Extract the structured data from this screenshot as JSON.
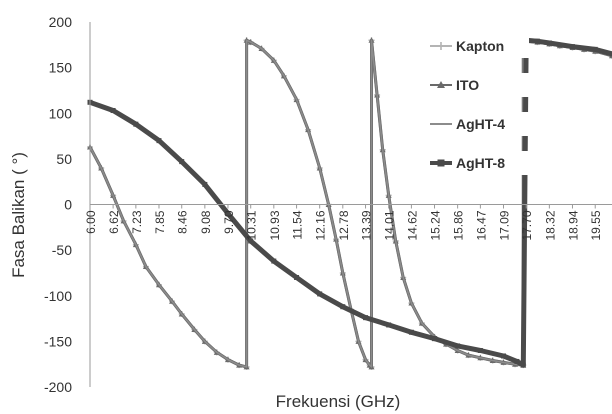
{
  "chart_data": {
    "type": "line",
    "title": "",
    "xlabel": "Frekuensi (GHz)",
    "ylabel": "Fasa Balikan ( °)",
    "ylim": [
      -200,
      200
    ],
    "xlim": [
      6.0,
      20.0
    ],
    "yticks": [
      200,
      150,
      100,
      50,
      0,
      -50,
      -100,
      -150,
      -200
    ],
    "yticklabels": [
      "200",
      "150",
      "100",
      "50",
      "0",
      "-50",
      "-100",
      "-150",
      "-200"
    ],
    "xticks": [
      6.0,
      6.62,
      7.23,
      7.85,
      8.46,
      9.08,
      9.7,
      10.31,
      10.93,
      11.54,
      12.16,
      12.78,
      13.39,
      14.01,
      14.62,
      15.24,
      15.86,
      16.47,
      17.09,
      17.7,
      18.32,
      18.94,
      19.55
    ],
    "xticklabels": [
      "6.00",
      "6.62",
      "7.23",
      "7.85",
      "8.46",
      "9.08",
      "9.70",
      "10.31",
      "10.93",
      "11.54",
      "12.16",
      "12.78",
      "13.39",
      "14.01",
      "14.62",
      "15.24",
      "15.86",
      "16.47",
      "17.09",
      "17.70",
      "18.32",
      "18.94",
      "19.55"
    ],
    "grid": false,
    "legend_position": "top-right",
    "series": [
      {
        "name": "Kapton",
        "color": "#b4b4b4",
        "marker": "plus",
        "x": [
          6.0,
          6.3,
          6.62,
          6.9,
          7.23,
          7.5,
          7.85,
          8.2,
          8.46,
          8.8,
          9.08,
          9.4,
          9.7,
          10.0,
          10.2,
          10.2,
          10.31,
          10.6,
          10.93,
          11.2,
          11.54,
          11.85,
          12.16,
          12.4,
          12.6,
          12.78,
          13.0,
          13.2,
          13.39,
          13.5,
          13.55,
          13.55,
          13.7,
          13.85,
          14.01,
          14.2,
          14.4,
          14.62,
          14.9,
          15.24,
          15.55,
          15.86,
          16.15,
          16.47,
          16.8,
          17.09,
          17.4,
          17.62,
          17.62,
          17.7,
          18.0,
          18.32,
          18.6,
          18.94,
          19.25,
          19.55,
          20.0
        ],
        "y": [
          63,
          40,
          10,
          -18,
          -44,
          -68,
          -88,
          -106,
          -120,
          -137,
          -150,
          -162,
          -170,
          -176,
          -178,
          180,
          178,
          171,
          158,
          141,
          115,
          82,
          40,
          0,
          -38,
          -75,
          -115,
          -150,
          -170,
          -176,
          -178,
          180,
          120,
          60,
          10,
          -40,
          -80,
          -108,
          -130,
          -145,
          -153,
          -160,
          -165,
          -168,
          -171,
          -173,
          -175,
          -176,
          180,
          179,
          178,
          176,
          174,
          172,
          170,
          168,
          163
        ]
      },
      {
        "name": "ITO",
        "color": "#6a6a6a",
        "marker": "triangle",
        "x": [
          6.0,
          6.3,
          6.62,
          6.9,
          7.23,
          7.5,
          7.85,
          8.2,
          8.46,
          8.8,
          9.08,
          9.4,
          9.7,
          10.0,
          10.2,
          10.2,
          10.31,
          10.6,
          10.93,
          11.2,
          11.54,
          11.85,
          12.16,
          12.4,
          12.6,
          12.78,
          13.0,
          13.2,
          13.39,
          13.5,
          13.55,
          13.55,
          13.7,
          13.85,
          14.01,
          14.2,
          14.4,
          14.62,
          14.9,
          15.24,
          15.55,
          15.86,
          16.15,
          16.47,
          16.8,
          17.09,
          17.4,
          17.62,
          17.62,
          17.7,
          18.0,
          18.32,
          18.6,
          18.94,
          19.25,
          19.55,
          20.0
        ],
        "y": [
          63,
          40,
          10,
          -18,
          -44,
          -68,
          -88,
          -106,
          -120,
          -137,
          -150,
          -162,
          -170,
          -176,
          -178,
          180,
          178,
          171,
          158,
          141,
          115,
          82,
          40,
          0,
          -38,
          -75,
          -115,
          -150,
          -170,
          -176,
          -178,
          180,
          120,
          60,
          10,
          -40,
          -80,
          -108,
          -130,
          -145,
          -153,
          -160,
          -165,
          -168,
          -171,
          -173,
          -175,
          -176,
          180,
          179,
          178,
          176,
          174,
          172,
          170,
          168,
          163
        ]
      },
      {
        "name": "AgHT-4",
        "color": "#8c8c8c",
        "marker": "none",
        "x": [
          6.0,
          6.3,
          6.62,
          6.9,
          7.23,
          7.5,
          7.85,
          8.2,
          8.46,
          8.8,
          9.08,
          9.4,
          9.7,
          10.0,
          10.2,
          10.2,
          10.31,
          10.6,
          10.93,
          11.2,
          11.54,
          11.85,
          12.16,
          12.4,
          12.6,
          12.78,
          13.0,
          13.2,
          13.39,
          13.5,
          13.55,
          13.55,
          13.7,
          13.85,
          14.01,
          14.2,
          14.4,
          14.62,
          14.9,
          15.24,
          15.55,
          15.86,
          16.15,
          16.47,
          16.8,
          17.09,
          17.4,
          17.62,
          17.62,
          17.7,
          18.0,
          18.32,
          18.6,
          18.94,
          19.25,
          19.55,
          20.0
        ],
        "y": [
          63,
          40,
          10,
          -18,
          -44,
          -68,
          -88,
          -106,
          -120,
          -137,
          -150,
          -162,
          -170,
          -176,
          -178,
          180,
          178,
          171,
          158,
          141,
          115,
          82,
          40,
          0,
          -38,
          -75,
          -115,
          -150,
          -170,
          -176,
          -178,
          180,
          120,
          60,
          10,
          -40,
          -80,
          -108,
          -130,
          -145,
          -153,
          -160,
          -165,
          -168,
          -171,
          -173,
          -175,
          -176,
          180,
          179,
          178,
          176,
          174,
          172,
          170,
          168,
          163
        ]
      },
      {
        "name": "AgHT-8",
        "color": "#4a4a4a",
        "marker": "square",
        "x": [
          6.0,
          6.62,
          7.23,
          7.85,
          8.46,
          9.08,
          9.7,
          10.31,
          10.93,
          11.54,
          12.16,
          12.78,
          13.39,
          14.01,
          14.62,
          15.24,
          15.86,
          16.47,
          17.09,
          17.45,
          17.62,
          17.7,
          18.0,
          18.32,
          18.94,
          19.55,
          20.0
        ],
        "y": [
          112,
          103,
          88,
          70,
          47,
          22,
          -10,
          -40,
          -62,
          -80,
          -98,
          -112,
          -124,
          -132,
          -140,
          -147,
          -155,
          -160,
          -166,
          -172,
          -176,
          180,
          179,
          177,
          173,
          170,
          165
        ]
      }
    ]
  }
}
